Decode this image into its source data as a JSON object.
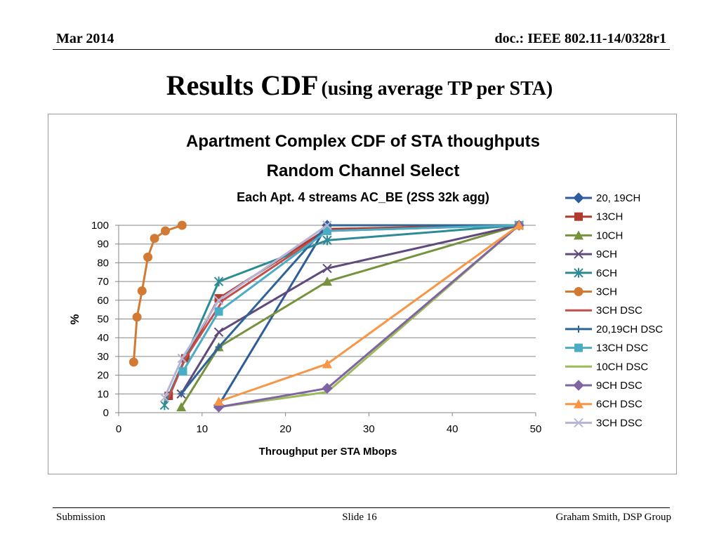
{
  "header": {
    "date": "Mar 2014",
    "doc": "doc.: IEEE 802.11-14/0328r1"
  },
  "slide": {
    "title": "Results CDF",
    "subtitle": "(using average TP per STA)"
  },
  "footer": {
    "left": "Submission",
    "center": "Slide 16",
    "right": "Graham Smith, DSP Group"
  },
  "chart_data": {
    "type": "line",
    "title": "Apartment Complex CDF of STA thoughputs",
    "subtitle": "Random Channel Select",
    "subtitle2": "Each Apt. 4 streams AC_BE (2SS 32k agg)",
    "xlabel": "Throughput  per STA Mbops",
    "ylabel": "%",
    "xlim": [
      0,
      50
    ],
    "ylim": [
      0,
      100
    ],
    "xticks": [
      0,
      10,
      20,
      30,
      40,
      50
    ],
    "yticks": [
      0,
      10,
      20,
      30,
      40,
      50,
      60,
      70,
      80,
      90,
      100
    ],
    "grid": true,
    "legend_position": "right",
    "series": [
      {
        "name": "20, 19CH",
        "color": "#2e5b9a",
        "marker": "diamond",
        "x": [
          12,
          25
        ],
        "y": [
          4,
          100
        ]
      },
      {
        "name": "13CH",
        "color": "#b03a2e",
        "marker": "square",
        "x": [
          6,
          8,
          12,
          25,
          48
        ],
        "y": [
          9,
          29,
          61,
          98,
          100
        ]
      },
      {
        "name": "10CH",
        "color": "#76923c",
        "marker": "triangle",
        "x": [
          7.5,
          12,
          25,
          48
        ],
        "y": [
          3,
          35,
          70,
          100
        ]
      },
      {
        "name": "9CH",
        "color": "#604a7b",
        "marker": "x",
        "x": [
          7.5,
          12,
          25,
          48
        ],
        "y": [
          10,
          43,
          77,
          100
        ]
      },
      {
        "name": "6CH",
        "color": "#2d8b96",
        "marker": "star",
        "x": [
          5.5,
          12,
          25,
          48
        ],
        "y": [
          4,
          70,
          92,
          100
        ]
      },
      {
        "name": "3CH",
        "color": "#d27a34",
        "marker": "circle",
        "x": [
          1.8,
          2.2,
          2.8,
          3.5,
          4.3,
          5.6,
          7.6
        ],
        "y": [
          27,
          51,
          65,
          83,
          93,
          97,
          100
        ]
      },
      {
        "name": "3CH DSC",
        "color": "#c0504d",
        "marker": "none",
        "x": [
          6,
          8,
          12.5,
          25,
          48
        ],
        "y": [
          8,
          29,
          60,
          97,
          100
        ]
      },
      {
        "name": "20,19CH DSC",
        "color": "#2e6496",
        "marker": "plus",
        "x": [
          7.5,
          12,
          25,
          48
        ],
        "y": [
          10,
          35,
          100,
          100
        ]
      },
      {
        "name": "13CH DSC",
        "color": "#4bacc6",
        "marker": "square",
        "x": [
          7.7,
          12,
          25,
          48
        ],
        "y": [
          22,
          54,
          97,
          100
        ]
      },
      {
        "name": "10CH DSC",
        "color": "#9bbb59",
        "marker": "none",
        "x": [
          12,
          25,
          48
        ],
        "y": [
          3,
          11,
          100
        ]
      },
      {
        "name": "9CH DSC",
        "color": "#8064a2",
        "marker": "diamond",
        "x": [
          12,
          25,
          48
        ],
        "y": [
          3,
          13,
          100
        ]
      },
      {
        "name": "6CH DSC",
        "color": "#f79646",
        "marker": "triangle",
        "x": [
          12,
          25,
          48
        ],
        "y": [
          6,
          26,
          100
        ]
      },
      {
        "name": "3CH DSC",
        "color": "#b7b5d6",
        "marker": "x",
        "x": [
          5.5,
          7.6,
          12,
          25
        ],
        "y": [
          8,
          29,
          60,
          100
        ]
      }
    ]
  }
}
